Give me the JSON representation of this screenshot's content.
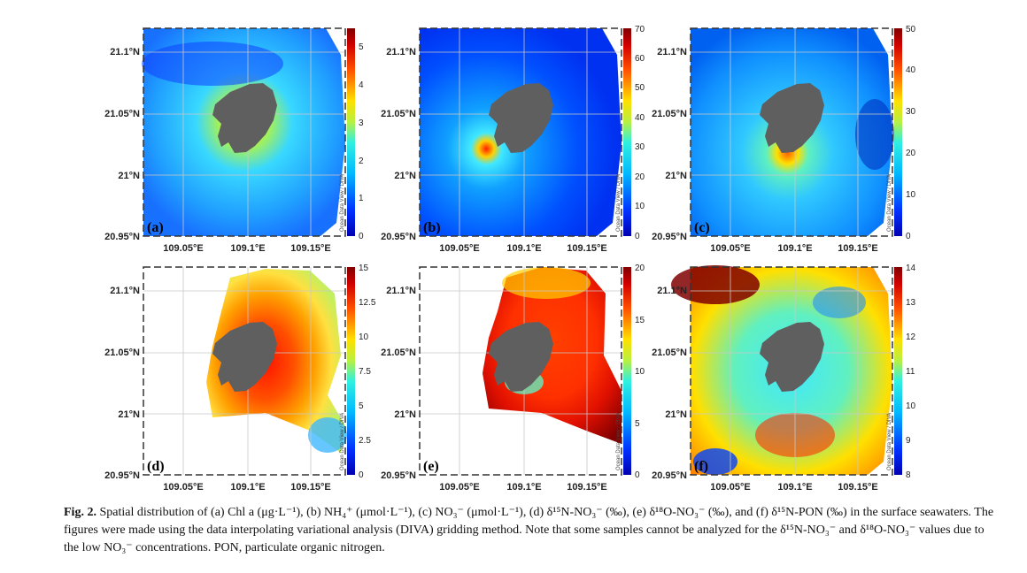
{
  "figure": {
    "caption_label": "Fig. 2.",
    "caption_text": "Spatial distribution of (a) Chl a (μg·L⁻¹), (b) NH₄⁺ (μmol·L⁻¹), (c) NO₃⁻ (μmol·L⁻¹), (d) δ¹⁵N-NO₃⁻ (‰), (e) δ¹⁸O-NO₃⁻ (‰), and (f) δ¹⁵N-PON (‰) in the surface seawaters. The figures were made using the data interpolating variational analysis (DIVA) gridding method. Note that some samples cannot be analyzed for the δ¹⁵N-NO₃⁻ and δ¹⁸O-NO₃⁻ values due to the low NO₃⁻ concentrations. PON, particulate organic nitrogen.",
    "watermark": "Ocean Data View / DIVA",
    "lat_labels": [
      "21.1°N",
      "21.05°N",
      "21°N",
      "20.95°N"
    ],
    "lon_labels": [
      "109.05°E",
      "109.1°E",
      "109.15°E"
    ],
    "colors": {
      "land": "#5f5f5f",
      "grid": "#c8c8c8",
      "frame": "#333333"
    }
  },
  "chart_data": [
    {
      "type": "heatmap",
      "panel": "(a)",
      "colorbar_ticks": [
        "0",
        "1",
        "2",
        "3",
        "4",
        "5"
      ],
      "range": [
        0,
        5.5
      ]
    },
    {
      "type": "heatmap",
      "panel": "(b)",
      "colorbar_ticks": [
        "0",
        "10",
        "20",
        "30",
        "40",
        "50",
        "60",
        "70"
      ],
      "range": [
        0,
        70
      ]
    },
    {
      "type": "heatmap",
      "panel": "(c)",
      "colorbar_ticks": [
        "0",
        "10",
        "20",
        "30",
        "40",
        "50"
      ],
      "range": [
        0,
        50
      ]
    },
    {
      "type": "heatmap",
      "panel": "(d)",
      "colorbar_ticks": [
        "0",
        "2.5",
        "5",
        "7.5",
        "10",
        "12.5",
        "15"
      ],
      "range": [
        0,
        15
      ]
    },
    {
      "type": "heatmap",
      "panel": "(e)",
      "colorbar_ticks": [
        "0",
        "5",
        "10",
        "15",
        "20"
      ],
      "range": [
        0,
        20
      ]
    },
    {
      "type": "heatmap",
      "panel": "(f)",
      "colorbar_ticks": [
        "8",
        "9",
        "10",
        "11",
        "12",
        "13",
        "14"
      ],
      "range": [
        8,
        14
      ]
    }
  ]
}
